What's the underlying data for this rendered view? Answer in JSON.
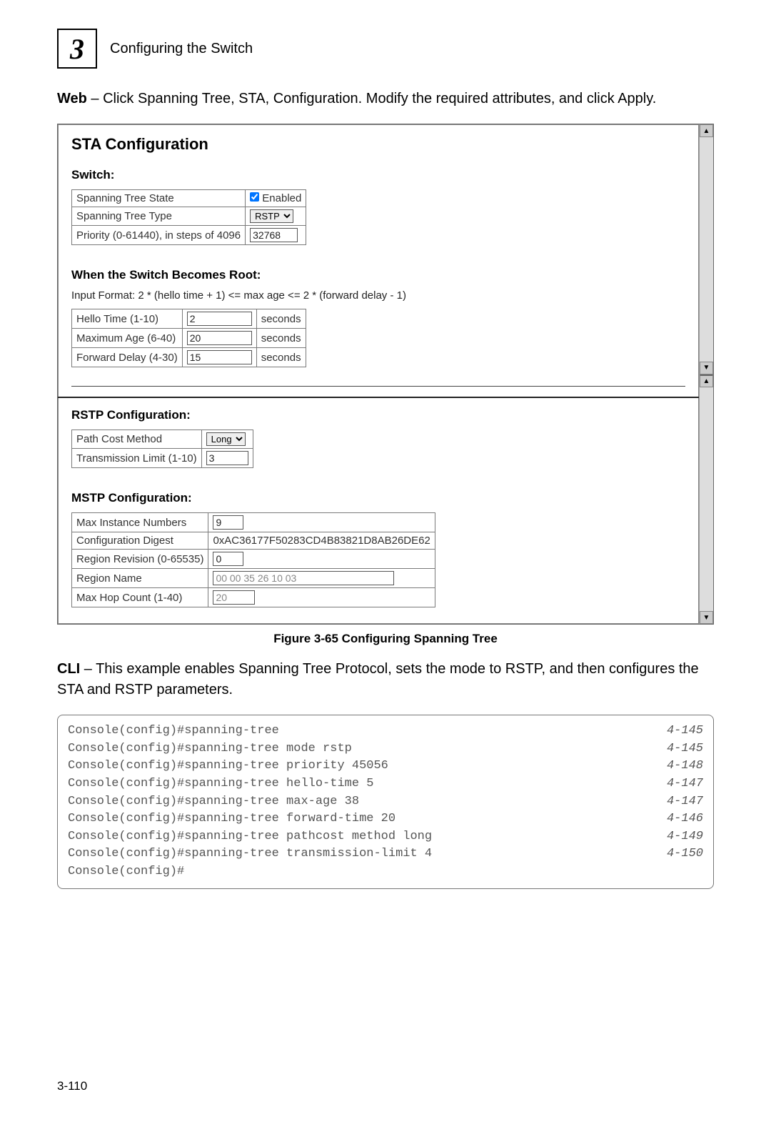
{
  "header": {
    "chapter_number": "3",
    "chapter_title": "Configuring the Switch"
  },
  "intro": {
    "web_label": "Web",
    "web_text": " – Click Spanning Tree, STA, Configuration. Modify the required attributes, and click Apply."
  },
  "sta_panel": {
    "title": "STA Configuration",
    "switch_section": {
      "heading": "Switch:",
      "rows": {
        "state_label": "Spanning Tree State",
        "state_enabled": "Enabled",
        "type_label": "Spanning Tree Type",
        "type_value": "RSTP",
        "priority_label": "Priority (0-61440), in steps of 4096",
        "priority_value": "32768"
      }
    },
    "root_section": {
      "heading": "When the Switch Becomes Root:",
      "hint": "Input Format: 2 * (hello time + 1) <= max age <= 2 * (forward delay - 1)",
      "hello_label": "Hello Time (1-10)",
      "hello_value": "2",
      "hello_unit": "seconds",
      "maxage_label": "Maximum Age (6-40)",
      "maxage_value": "20",
      "maxage_unit": "seconds",
      "fdelay_label": "Forward Delay (4-30)",
      "fdelay_value": "15",
      "fdelay_unit": "seconds"
    },
    "rstp_section": {
      "heading": "RSTP Configuration:",
      "pathcost_label": "Path Cost Method",
      "pathcost_value": "Long",
      "txlimit_label": "Transmission Limit (1-10)",
      "txlimit_value": "3"
    },
    "mstp_section": {
      "heading": "MSTP Configuration:",
      "maxinst_label": "Max Instance Numbers",
      "maxinst_value": "9",
      "digest_label": "Configuration Digest",
      "digest_value": "0xAC36177F50283CD4B83821D8AB26DE62",
      "regrev_label": "Region Revision (0-65535)",
      "regrev_value": "0",
      "regname_label": "Region Name",
      "regname_value": "00 00 35 26 10 03",
      "maxhop_label": "Max Hop Count (1-40)",
      "maxhop_value": "20"
    }
  },
  "figure_caption": "Figure 3-65   Configuring Spanning Tree",
  "cli_intro": {
    "cli_label": "CLI",
    "cli_text": " – This example enables Spanning Tree Protocol, sets the mode to RSTP, and then configures the STA and RSTP parameters."
  },
  "cli_lines": [
    {
      "cmd": "Console(config)#spanning-tree",
      "ref": "4-145"
    },
    {
      "cmd": "Console(config)#spanning-tree mode rstp",
      "ref": "4-145"
    },
    {
      "cmd": "Console(config)#spanning-tree priority 45056",
      "ref": "4-148"
    },
    {
      "cmd": "Console(config)#spanning-tree hello-time 5",
      "ref": "4-147"
    },
    {
      "cmd": "Console(config)#spanning-tree max-age 38",
      "ref": "4-147"
    },
    {
      "cmd": "Console(config)#spanning-tree forward-time 20",
      "ref": "4-146"
    },
    {
      "cmd": "Console(config)#spanning-tree pathcost method long",
      "ref": "4-149"
    },
    {
      "cmd": "Console(config)#spanning-tree transmission-limit 4",
      "ref": "4-150"
    },
    {
      "cmd": "Console(config)#",
      "ref": ""
    }
  ],
  "page_number": "3-110"
}
